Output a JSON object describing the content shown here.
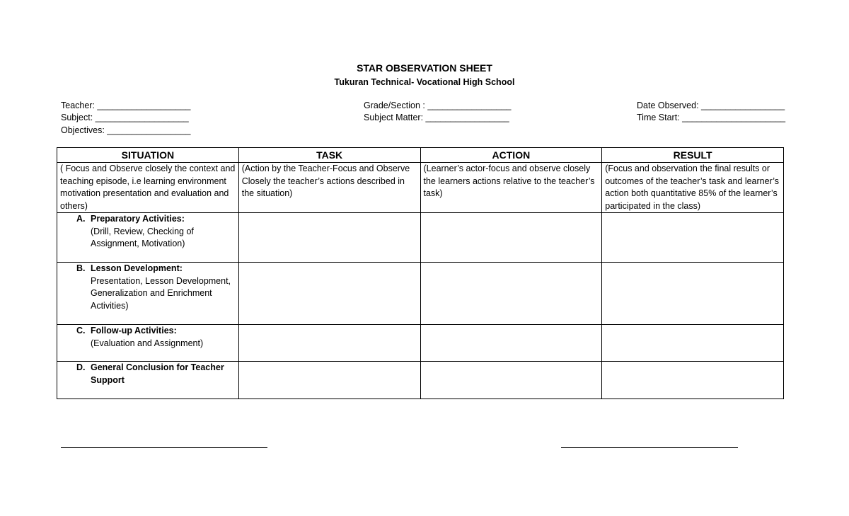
{
  "header": {
    "title": "STAR OBSERVATION SHEET",
    "school": "Tukuran Technical- Vocational High School"
  },
  "fields": {
    "teacher": "Teacher: ___________________",
    "subject": "Subject: ___________________",
    "objectives": "Objectives: _________________",
    "grade_section": "Grade/Section : _________________",
    "subject_matter": "Subject Matter: _________________",
    "date_observed": "Date Observed: _________________",
    "time_start": "Time Start: _____________________"
  },
  "table": {
    "headers": [
      "SITUATION",
      "TASK",
      "ACTION",
      "RESULT"
    ],
    "descriptions": [
      "( Focus and Observe closely the context and teaching episode, i.e learning environment motivation presentation and evaluation and others)",
      "(Action by the Teacher-Focus and Observe Closely the teacher’s actions described in the situation)",
      "(Learner’s actor-focus and observe closely the learners actions relative to the teacher’s task)",
      "(Focus and observation the final results or outcomes of the teacher’s task and learner’s action both quantitative 85% of the learner’s participated in the class)"
    ],
    "sections": [
      {
        "letter": "A.",
        "title": "Preparatory Activities:",
        "detail": "(Drill, Review, Checking of Assignment, Motivation)"
      },
      {
        "letter": "B.",
        "title": "Lesson Development:",
        "detail": "Presentation, Lesson Development, Generalization and Enrichment Activities)"
      },
      {
        "letter": "C.",
        "title": "Follow-up Activities:",
        "detail": "(Evaluation and Assignment)"
      },
      {
        "letter": "D.",
        "title": "General Conclusion for Teacher Support",
        "detail": ""
      }
    ]
  }
}
